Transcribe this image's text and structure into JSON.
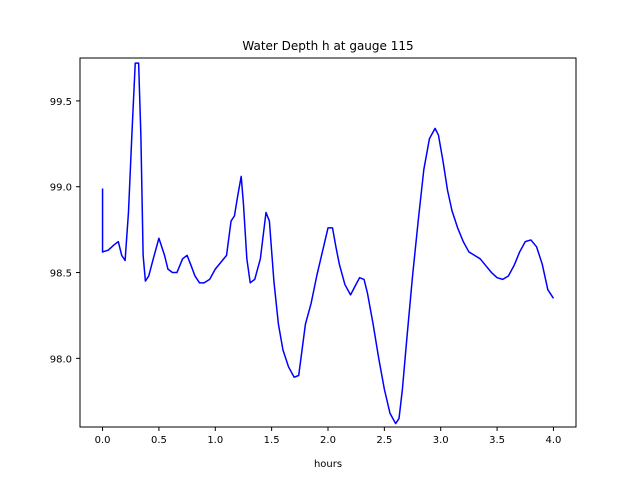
{
  "chart_data": {
    "type": "line",
    "title": "Water Depth h at gauge 115",
    "xlabel": "hours",
    "ylabel": "",
    "xlim": [
      -0.2,
      4.2
    ],
    "ylim": [
      97.6,
      99.75
    ],
    "xticks": [
      0.0,
      0.5,
      1.0,
      1.5,
      2.0,
      2.5,
      3.0,
      3.5,
      4.0
    ],
    "xtick_labels": [
      "0.0",
      "0.5",
      "1.0",
      "1.5",
      "2.0",
      "2.5",
      "3.0",
      "3.5",
      "4.0"
    ],
    "yticks": [
      98.0,
      98.5,
      99.0,
      99.5
    ],
    "ytick_labels": [
      "98.0",
      "98.5",
      "99.0",
      "99.5"
    ],
    "grid": false,
    "series": [
      {
        "color": "#0000ff",
        "x": [
          0.0,
          0.0,
          0.05,
          0.1,
          0.14,
          0.17,
          0.2,
          0.23,
          0.26,
          0.29,
          0.32,
          0.34,
          0.36,
          0.38,
          0.41,
          0.45,
          0.5,
          0.55,
          0.58,
          0.62,
          0.66,
          0.71,
          0.75,
          0.78,
          0.82,
          0.86,
          0.9,
          0.95,
          1.0,
          1.05,
          1.1,
          1.14,
          1.17,
          1.2,
          1.23,
          1.25,
          1.28,
          1.31,
          1.35,
          1.4,
          1.45,
          1.48,
          1.52,
          1.56,
          1.6,
          1.65,
          1.7,
          1.74,
          1.77,
          1.8,
          1.85,
          1.9,
          1.95,
          2.0,
          2.04,
          2.07,
          2.1,
          2.15,
          2.2,
          2.24,
          2.28,
          2.32,
          2.35,
          2.4,
          2.45,
          2.5,
          2.55,
          2.6,
          2.63,
          2.66,
          2.7,
          2.75,
          2.8,
          2.85,
          2.9,
          2.95,
          2.98,
          3.02,
          3.06,
          3.1,
          3.15,
          3.2,
          3.25,
          3.3,
          3.35,
          3.4,
          3.45,
          3.5,
          3.55,
          3.6,
          3.65,
          3.7,
          3.75,
          3.8,
          3.85,
          3.9,
          3.95,
          4.0
        ],
        "y": [
          98.99,
          98.62,
          98.63,
          98.66,
          98.68,
          98.6,
          98.57,
          98.85,
          99.3,
          99.72,
          99.72,
          99.3,
          98.6,
          98.45,
          98.48,
          98.58,
          98.7,
          98.6,
          98.52,
          98.5,
          98.5,
          98.58,
          98.6,
          98.55,
          98.48,
          98.44,
          98.44,
          98.46,
          98.52,
          98.56,
          98.6,
          98.8,
          98.83,
          98.95,
          99.06,
          98.9,
          98.58,
          98.44,
          98.46,
          98.58,
          98.85,
          98.8,
          98.45,
          98.2,
          98.05,
          97.95,
          97.89,
          97.9,
          98.05,
          98.2,
          98.32,
          98.48,
          98.62,
          98.76,
          98.76,
          98.65,
          98.55,
          98.43,
          98.37,
          98.42,
          98.47,
          98.46,
          98.38,
          98.2,
          98.0,
          97.82,
          97.68,
          97.62,
          97.65,
          97.82,
          98.12,
          98.48,
          98.8,
          99.1,
          99.28,
          99.34,
          99.3,
          99.15,
          98.98,
          98.86,
          98.76,
          98.68,
          98.62,
          98.6,
          98.58,
          98.54,
          98.5,
          98.47,
          98.46,
          98.48,
          98.54,
          98.62,
          98.68,
          98.69,
          98.65,
          98.55,
          98.4,
          98.35
        ]
      }
    ]
  }
}
